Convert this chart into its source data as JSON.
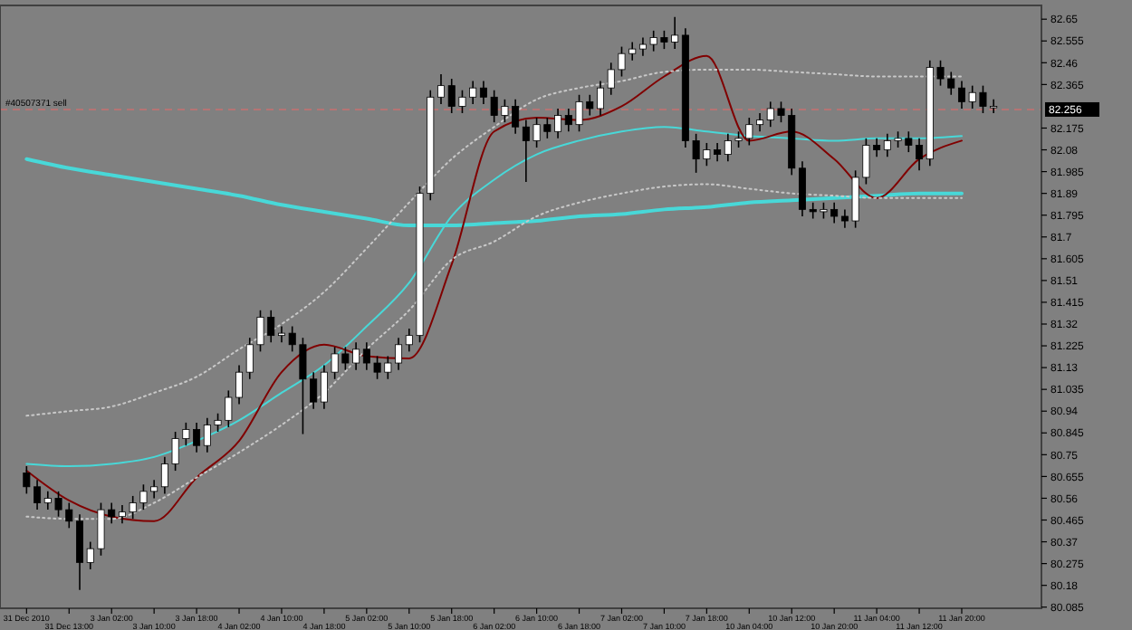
{
  "chart_data": {
    "type": "candlestick",
    "categories": [
      "31 Dec 2010",
      null,
      null,
      null,
      "31 Dec 13:00",
      null,
      null,
      null,
      "3 Jan 02:00",
      null,
      null,
      null,
      "3 Jan 10:00",
      null,
      null,
      null,
      "3 Jan 18:00",
      null,
      null,
      null,
      "4 Jan 02:00",
      null,
      null,
      null,
      "4 Jan 10:00",
      null,
      null,
      null,
      "4 Jan 18:00",
      null,
      null,
      null,
      "5 Jan 02:00",
      null,
      null,
      null,
      "5 Jan 10:00",
      null,
      null,
      null,
      "5 Jan 18:00",
      null,
      null,
      null,
      "6 Jan 02:00",
      null,
      null,
      null,
      "6 Jan 10:00",
      null,
      null,
      null,
      "6 Jan 18:00",
      null,
      null,
      null,
      "7 Jan 02:00",
      null,
      null,
      null,
      "7 Jan 10:00",
      null,
      null,
      null,
      "7 Jan 18:00",
      null,
      null,
      null,
      "10 Jan 04:00",
      null,
      null,
      null,
      "10 Jan 12:00",
      null,
      null,
      null,
      "10 Jan 20:00",
      null,
      null,
      null,
      "11 Jan 04:00",
      null,
      null,
      null,
      "11 Jan 12:00",
      null,
      null,
      null,
      "11 Jan 20:00",
      null,
      null,
      null
    ],
    "ohlc": [
      [
        80.67,
        80.7,
        80.58,
        80.61
      ],
      [
        80.61,
        80.64,
        80.51,
        80.54
      ],
      [
        80.54,
        80.59,
        80.51,
        80.56
      ],
      [
        80.56,
        80.59,
        80.48,
        80.51
      ],
      [
        80.51,
        80.54,
        80.43,
        80.46
      ],
      [
        80.46,
        80.49,
        80.16,
        80.28
      ],
      [
        80.28,
        80.37,
        80.25,
        80.34
      ],
      [
        80.34,
        80.54,
        80.31,
        80.51
      ],
      [
        80.51,
        80.54,
        80.45,
        80.48
      ],
      [
        80.48,
        80.53,
        80.45,
        80.5
      ],
      [
        80.5,
        80.57,
        80.47,
        80.54
      ],
      [
        80.54,
        80.62,
        80.51,
        80.59
      ],
      [
        80.59,
        80.64,
        80.56,
        80.61
      ],
      [
        80.61,
        80.74,
        80.58,
        80.71
      ],
      [
        80.71,
        80.85,
        80.68,
        80.82
      ],
      [
        80.82,
        80.89,
        80.79,
        80.86
      ],
      [
        80.86,
        80.89,
        80.76,
        80.79
      ],
      [
        80.79,
        80.91,
        80.76,
        80.88
      ],
      [
        80.88,
        80.93,
        80.85,
        80.9
      ],
      [
        80.9,
        81.03,
        80.87,
        81.0
      ],
      [
        81.0,
        81.14,
        80.97,
        81.11
      ],
      [
        81.11,
        81.26,
        81.08,
        81.23
      ],
      [
        81.23,
        81.38,
        81.2,
        81.35
      ],
      [
        81.35,
        81.38,
        81.24,
        81.27
      ],
      [
        81.27,
        81.31,
        81.24,
        81.28
      ],
      [
        81.28,
        81.31,
        81.2,
        81.23
      ],
      [
        81.23,
        81.26,
        80.84,
        81.08
      ],
      [
        81.08,
        81.11,
        80.95,
        80.98
      ],
      [
        80.98,
        81.14,
        80.95,
        81.11
      ],
      [
        81.11,
        81.22,
        81.08,
        81.19
      ],
      [
        81.19,
        81.22,
        81.12,
        81.15
      ],
      [
        81.15,
        81.24,
        81.12,
        81.21
      ],
      [
        81.21,
        81.24,
        81.12,
        81.15
      ],
      [
        81.15,
        81.18,
        81.08,
        81.11
      ],
      [
        81.11,
        81.18,
        81.08,
        81.15
      ],
      [
        81.15,
        81.26,
        81.12,
        81.23
      ],
      [
        81.23,
        81.3,
        81.2,
        81.27
      ],
      [
        81.27,
        81.92,
        81.24,
        81.89
      ],
      [
        81.89,
        82.34,
        81.86,
        82.31
      ],
      [
        82.31,
        82.41,
        82.28,
        82.36
      ],
      [
        82.36,
        82.39,
        82.24,
        82.27
      ],
      [
        82.27,
        82.34,
        82.24,
        82.31
      ],
      [
        82.31,
        82.38,
        82.28,
        82.35
      ],
      [
        82.35,
        82.38,
        82.28,
        82.31
      ],
      [
        82.31,
        82.34,
        82.2,
        82.23
      ],
      [
        82.23,
        82.3,
        82.2,
        82.27
      ],
      [
        82.27,
        82.3,
        82.15,
        82.18
      ],
      [
        82.18,
        82.21,
        81.94,
        82.12
      ],
      [
        82.12,
        82.22,
        82.09,
        82.19
      ],
      [
        82.19,
        82.22,
        82.13,
        82.16
      ],
      [
        82.16,
        82.26,
        82.13,
        82.23
      ],
      [
        82.23,
        82.26,
        82.16,
        82.19
      ],
      [
        82.19,
        82.32,
        82.16,
        82.29
      ],
      [
        82.29,
        82.32,
        82.23,
        82.26
      ],
      [
        82.26,
        82.38,
        82.23,
        82.35
      ],
      [
        82.35,
        82.46,
        82.32,
        82.43
      ],
      [
        82.43,
        82.53,
        82.4,
        82.5
      ],
      [
        82.5,
        82.55,
        82.47,
        82.52
      ],
      [
        82.52,
        82.57,
        82.49,
        82.54
      ],
      [
        82.54,
        82.6,
        82.51,
        82.57
      ],
      [
        82.57,
        82.6,
        82.52,
        82.55
      ],
      [
        82.55,
        82.66,
        82.52,
        82.58
      ],
      [
        82.58,
        82.61,
        82.09,
        82.12
      ],
      [
        82.12,
        82.15,
        81.98,
        82.04
      ],
      [
        82.04,
        82.11,
        82.01,
        82.08
      ],
      [
        82.08,
        82.11,
        82.03,
        82.06
      ],
      [
        82.06,
        82.15,
        82.03,
        82.12
      ],
      [
        82.12,
        82.16,
        82.09,
        82.13
      ],
      [
        82.13,
        82.22,
        82.1,
        82.19
      ],
      [
        82.19,
        82.24,
        82.16,
        82.21
      ],
      [
        82.21,
        82.29,
        82.18,
        82.26
      ],
      [
        82.26,
        82.29,
        82.2,
        82.23
      ],
      [
        82.23,
        82.26,
        81.97,
        82.0
      ],
      [
        82.0,
        82.03,
        81.79,
        81.82
      ],
      [
        81.82,
        81.85,
        81.78,
        81.81
      ],
      [
        81.81,
        81.85,
        81.78,
        81.82
      ],
      [
        81.82,
        81.85,
        81.76,
        81.79
      ],
      [
        81.79,
        81.82,
        81.74,
        81.77
      ],
      [
        81.77,
        81.99,
        81.74,
        81.96
      ],
      [
        81.96,
        82.13,
        81.93,
        82.1
      ],
      [
        82.1,
        82.13,
        82.05,
        82.08
      ],
      [
        82.08,
        82.15,
        82.05,
        82.12
      ],
      [
        82.12,
        82.16,
        82.09,
        82.13
      ],
      [
        82.13,
        82.16,
        82.07,
        82.1
      ],
      [
        82.1,
        82.13,
        81.99,
        82.04
      ],
      [
        82.04,
        82.47,
        82.01,
        82.44
      ],
      [
        82.44,
        82.47,
        82.36,
        82.39
      ],
      [
        82.39,
        82.42,
        82.32,
        82.35
      ],
      [
        82.35,
        82.38,
        82.26,
        82.29
      ],
      [
        82.29,
        82.36,
        82.26,
        82.33
      ],
      [
        82.33,
        82.36,
        82.24,
        82.27
      ],
      [
        82.27,
        82.3,
        82.24,
        82.27
      ]
    ],
    "series": [
      {
        "type": "line",
        "color": "#48d8d8",
        "x": [
          "31 Dec 2010",
          "31 Dec 13:00",
          "3 Jan 02:00",
          "3 Jan 10:00",
          "3 Jan 18:00",
          "4 Jan 02:00",
          "4 Jan 10:00",
          "4 Jan 18:00",
          "5 Jan 02:00",
          "5 Jan 10:00",
          "5 Jan 18:00",
          "6 Jan 02:00",
          "6 Jan 10:00",
          "6 Jan 18:00",
          "7 Jan 02:00",
          "7 Jan 10:00",
          "7 Jan 18:00",
          "10 Jan 04:00",
          "10 Jan 12:00",
          "10 Jan 20:00",
          "11 Jan 04:00",
          "11 Jan 12:00",
          "11 Jan 20:00"
        ],
        "values": [
          82.04,
          82.0,
          81.97,
          81.94,
          81.91,
          81.88,
          81.84,
          81.81,
          81.78,
          81.75,
          81.75,
          81.76,
          81.77,
          81.79,
          81.8,
          81.82,
          81.83,
          81.85,
          81.86,
          81.87,
          81.88,
          81.89,
          81.89
        ]
      },
      {
        "type": "line",
        "color": "#48d8d8",
        "x": [
          "31 Dec 2010",
          "31 Dec 13:00",
          "3 Jan 02:00",
          "3 Jan 10:00",
          "3 Jan 18:00",
          "4 Jan 02:00",
          "4 Jan 10:00",
          "4 Jan 18:00",
          "5 Jan 02:00",
          "5 Jan 10:00",
          "5 Jan 18:00",
          "6 Jan 02:00",
          "6 Jan 10:00",
          "6 Jan 18:00",
          "7 Jan 02:00",
          "7 Jan 10:00",
          "7 Jan 18:00",
          "10 Jan 04:00",
          "10 Jan 12:00",
          "10 Jan 20:00",
          "11 Jan 04:00",
          "11 Jan 12:00",
          "11 Jan 20:00"
        ],
        "values": [
          80.71,
          80.7,
          80.71,
          80.74,
          80.81,
          80.9,
          81.02,
          81.14,
          81.31,
          81.5,
          81.79,
          81.95,
          82.06,
          82.12,
          82.16,
          82.18,
          82.16,
          82.14,
          82.13,
          82.12,
          82.13,
          82.13,
          82.14
        ]
      },
      {
        "type": "line",
        "color": "#800000",
        "x": [
          "31 Dec 2010",
          "31 Dec 13:00",
          "3 Jan 02:00",
          "3 Jan 10:00",
          "3 Jan 18:00",
          "4 Jan 02:00",
          "4 Jan 10:00",
          "4 Jan 18:00",
          "5 Jan 02:00",
          "5 Jan 10:00",
          "5 Jan 18:00",
          "6 Jan 02:00",
          "6 Jan 10:00",
          "6 Jan 18:00",
          "7 Jan 02:00",
          "7 Jan 10:00",
          "7 Jan 18:00",
          "10 Jan 04:00",
          "10 Jan 12:00",
          "10 Jan 20:00",
          "11 Jan 04:00",
          "11 Jan 12:00",
          "11 Jan 20:00"
        ],
        "values": [
          80.68,
          80.55,
          80.48,
          80.46,
          80.65,
          80.81,
          81.11,
          81.23,
          81.18,
          81.17,
          81.58,
          82.16,
          82.22,
          82.21,
          82.27,
          82.4,
          82.49,
          82.12,
          82.16,
          82.04,
          81.87,
          82.04,
          82.12
        ]
      },
      {
        "type": "line",
        "color": "#c8c8c8",
        "line_style": "dotted",
        "x": [
          "31 Dec 2010",
          "31 Dec 13:00",
          "3 Jan 02:00",
          "3 Jan 10:00",
          "3 Jan 18:00",
          "4 Jan 02:00",
          "4 Jan 10:00",
          "4 Jan 18:00",
          "5 Jan 02:00",
          "5 Jan 10:00",
          "5 Jan 18:00",
          "6 Jan 02:00",
          "6 Jan 10:00",
          "6 Jan 18:00",
          "7 Jan 02:00",
          "7 Jan 10:00",
          "7 Jan 18:00",
          "10 Jan 04:00",
          "10 Jan 12:00",
          "10 Jan 20:00",
          "11 Jan 04:00",
          "11 Jan 12:00",
          "11 Jan 20:00"
        ],
        "values": [
          80.92,
          80.94,
          80.96,
          81.02,
          81.09,
          81.21,
          81.32,
          81.46,
          81.65,
          81.85,
          82.04,
          82.18,
          82.3,
          82.35,
          82.38,
          82.42,
          82.43,
          82.43,
          82.42,
          82.41,
          82.4,
          82.4,
          82.4
        ]
      },
      {
        "type": "line",
        "color": "#c8c8c8",
        "line_style": "dotted",
        "x": [
          "31 Dec 2010",
          "31 Dec 13:00",
          "3 Jan 02:00",
          "3 Jan 10:00",
          "3 Jan 18:00",
          "4 Jan 02:00",
          "4 Jan 10:00",
          "4 Jan 18:00",
          "5 Jan 02:00",
          "5 Jan 10:00",
          "5 Jan 18:00",
          "6 Jan 02:00",
          "6 Jan 10:00",
          "6 Jan 18:00",
          "7 Jan 02:00",
          "7 Jan 10:00",
          "7 Jan 18:00",
          "10 Jan 04:00",
          "10 Jan 12:00",
          "10 Jan 20:00",
          "11 Jan 04:00",
          "11 Jan 12:00",
          "11 Jan 20:00"
        ],
        "values": [
          80.48,
          80.47,
          80.47,
          80.54,
          80.65,
          80.76,
          80.88,
          81.02,
          81.21,
          81.38,
          81.6,
          81.68,
          81.79,
          81.85,
          81.89,
          81.92,
          81.93,
          81.91,
          81.89,
          81.88,
          81.87,
          81.87,
          81.87
        ]
      }
    ],
    "ylim": [
      80.08,
      82.71
    ],
    "yticks": [
      82.65,
      82.555,
      82.46,
      82.365,
      82.175,
      82.08,
      81.985,
      81.89,
      81.795,
      81.7,
      81.605,
      81.51,
      81.415,
      81.32,
      81.225,
      81.13,
      81.035,
      80.94,
      80.845,
      80.75,
      80.655,
      80.56,
      80.465,
      80.37,
      80.275,
      80.18,
      80.085
    ],
    "ref_lines": [
      {
        "axis": "y",
        "value": 82.256,
        "label": "#40507371 sell",
        "color": "#c87070",
        "line_style": "dashed"
      }
    ],
    "annotations": [
      "82.256"
    ],
    "grid": false
  }
}
